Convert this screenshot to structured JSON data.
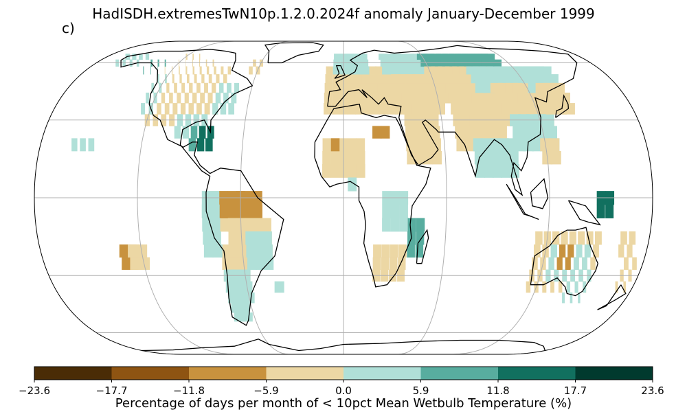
{
  "title": "HadISDH.extremesTwN10p.1.2.0.2024f anomaly January-December 1999",
  "panel_label": "c)",
  "colorbar": {
    "label": "Percentage of days per month of < 10pct Mean Wetbulb Temperature (%)",
    "ticks": [
      "−23.6",
      "−17.7",
      "−11.8",
      "−5.9",
      "0.0",
      "5.9",
      "11.8",
      "17.7",
      "23.6"
    ],
    "colors": [
      "#4a2c06",
      "#8e5412",
      "#c8923e",
      "#ecd7a4",
      "#b0e0d8",
      "#58ad9f",
      "#11705f",
      "#013a2e"
    ]
  },
  "map": {
    "projection": "Robinson",
    "grid": true,
    "land_color": "#ffffff",
    "coast_color": "#000000"
  }
}
